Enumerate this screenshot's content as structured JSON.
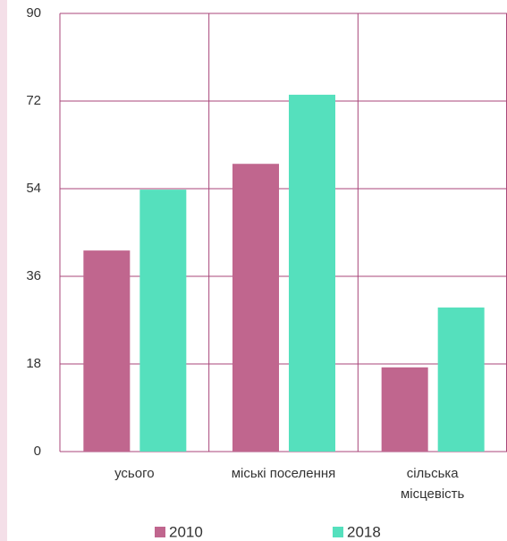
{
  "chart_data": {
    "type": "bar",
    "categories": [
      "усього",
      "міські поселення",
      "сільська місцевість"
    ],
    "series": [
      {
        "name": "2010",
        "color": "#c0668e",
        "values": [
          41.3,
          59.1,
          17.3
        ]
      },
      {
        "name": "2018",
        "color": "#55e0bd",
        "values": [
          53.8,
          73.3,
          29.6
        ]
      }
    ],
    "ylim": [
      0,
      90
    ],
    "yticks": [
      0,
      18,
      36,
      54,
      72,
      90
    ],
    "grid": true,
    "legend": "bottom"
  }
}
